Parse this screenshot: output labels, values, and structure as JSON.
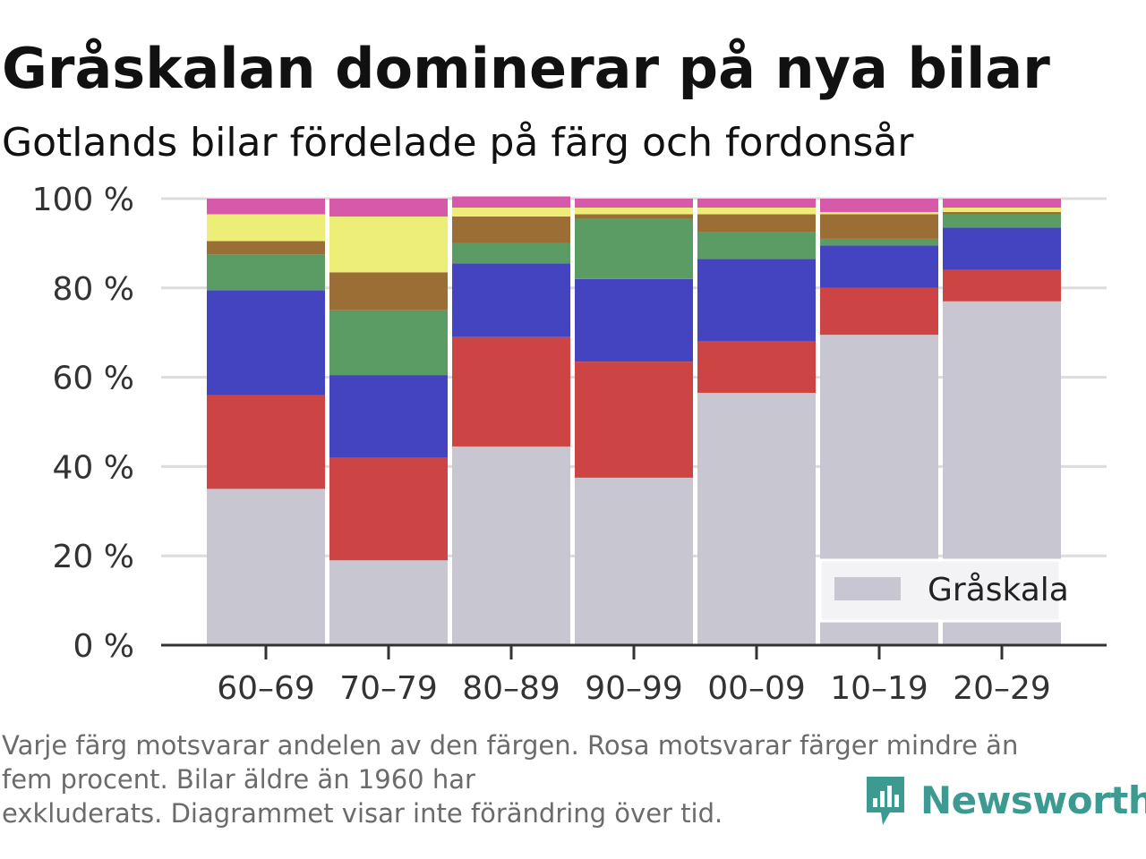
{
  "header": {
    "title": "Gråskalan dominerar på nya bilar",
    "subtitle": "Gotlands bilar fördelade på färg och fordonsår"
  },
  "footer": {
    "note": "Varje färg motsvarar andelen av den färgen. Rosa motsvarar färger mindre än\nfem procent. Bilar äldre än 1960 har\nexkluderats. Diagrammet visar inte förändring över tid.",
    "brand": "Newsworthy",
    "brand_color": "#3c9a90"
  },
  "chart_data": {
    "type": "bar",
    "stacked": true,
    "percent": true,
    "categories": [
      "60–69",
      "70–79",
      "80–89",
      "90–99",
      "00–09",
      "10–19",
      "20–29"
    ],
    "ylim": [
      0,
      100
    ],
    "yticks": [
      "0 %",
      "20 %",
      "40 %",
      "60 %",
      "80 %",
      "100 %"
    ],
    "grid": true,
    "legend": {
      "position": "bottom-right",
      "entries": [
        "Gråskala"
      ]
    },
    "series": [
      {
        "name": "Gråskala",
        "color": "#c8c7d1",
        "values": [
          35,
          19,
          44.5,
          37.5,
          56.5,
          69.5,
          77
        ]
      },
      {
        "color": "#cc4444",
        "values": [
          21,
          23,
          24.5,
          26,
          11.5,
          10.5,
          7
        ]
      },
      {
        "color": "#4444c1",
        "values": [
          23.5,
          18.5,
          16.5,
          18.5,
          18.5,
          9.5,
          9.5
        ]
      },
      {
        "color": "#5a9c63",
        "values": [
          8,
          14.5,
          4.5,
          13.5,
          6,
          1.5,
          3
        ]
      },
      {
        "color": "#9a6e35",
        "values": [
          3,
          8.5,
          6,
          1,
          4,
          5.5,
          0.5
        ]
      },
      {
        "color": "#ecee78",
        "values": [
          6,
          12.5,
          2,
          1.5,
          1.5,
          0.5,
          1
        ]
      },
      {
        "color": "#d65aa9",
        "values": [
          3.5,
          4,
          2.5,
          2,
          2,
          3,
          2
        ]
      }
    ]
  }
}
